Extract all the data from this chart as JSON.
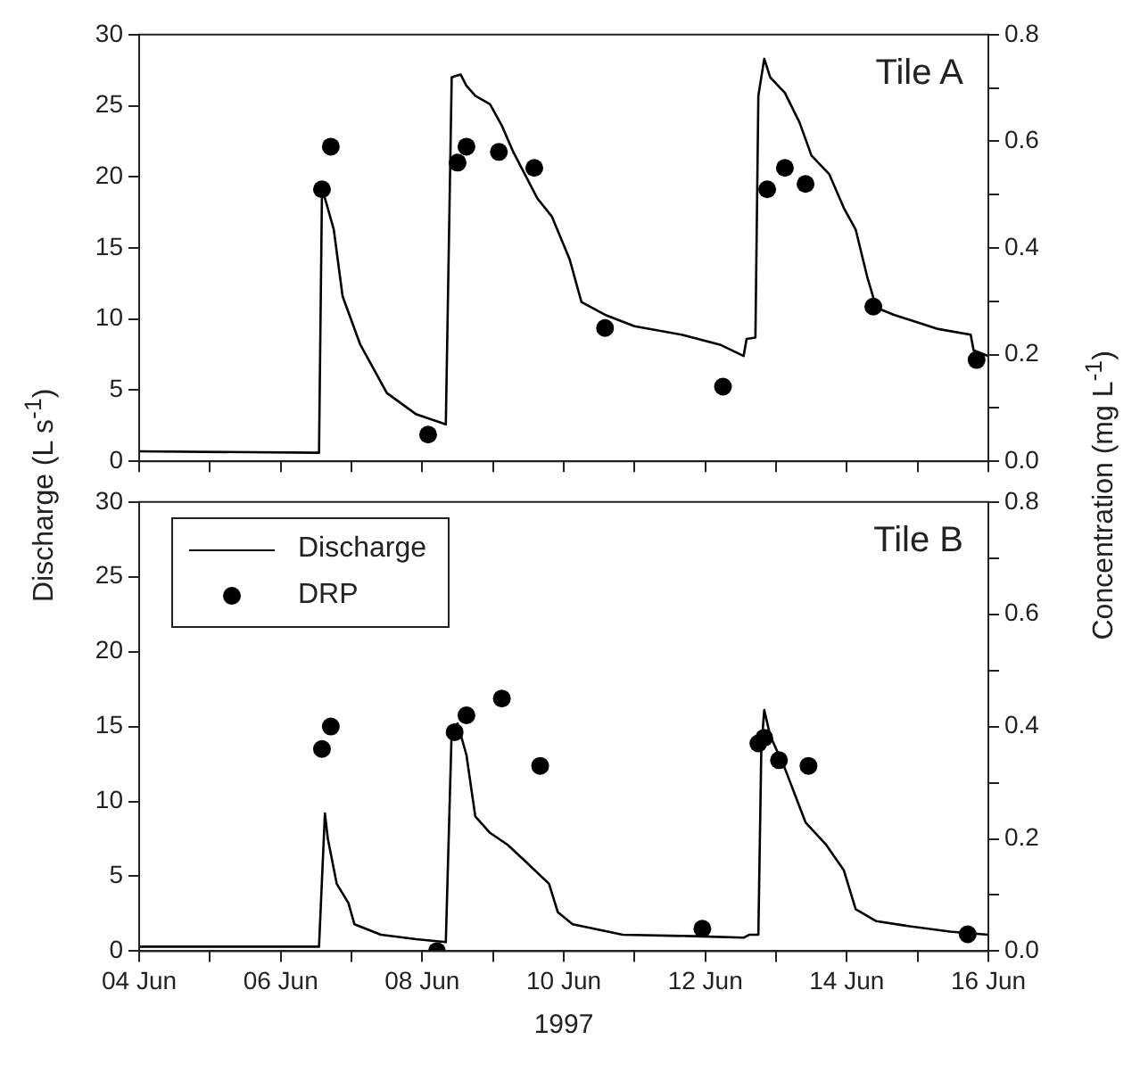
{
  "chart_data": [
    {
      "type": "line",
      "annotations": [
        "Tile A"
      ],
      "ylabel": "Discharge (L s$^{-1}$)",
      "y2label": "Concentration (mg L$^{-1}$)",
      "tick_labels": "y",
      "grid": false,
      "legend": false,
      "xlim": [
        "1997-06-04",
        "1997-06-16"
      ],
      "xticks": [
        {
          "value": "1997-06-04",
          "label": null
        },
        {
          "value": "1997-06-05",
          "label": null
        },
        {
          "value": "1997-06-06",
          "label": null
        },
        {
          "value": "1997-06-07",
          "label": null
        },
        {
          "value": "1997-06-08",
          "label": null
        },
        {
          "value": "1997-06-09",
          "label": null
        },
        {
          "value": "1997-06-10",
          "label": null
        },
        {
          "value": "1997-06-11",
          "label": null
        },
        {
          "value": "1997-06-12",
          "label": null
        },
        {
          "value": "1997-06-13",
          "label": null
        },
        {
          "value": "1997-06-14",
          "label": null
        },
        {
          "value": "1997-06-15",
          "label": null
        },
        {
          "value": "1997-06-16",
          "label": null
        }
      ],
      "ylim": [
        0,
        30
      ],
      "yticks": [
        0,
        5,
        10,
        15,
        20,
        25,
        30
      ],
      "y2lim": [
        0,
        0.8
      ],
      "y2ticks": [
        {
          "value": 0,
          "label": "0.0"
        },
        {
          "value": 0.1,
          "label": null
        },
        {
          "value": 0.2,
          "label": "0.2"
        },
        {
          "value": 0.3,
          "label": null
        },
        {
          "value": 0.4,
          "label": "0.4"
        },
        {
          "value": 0.5,
          "label": null
        },
        {
          "value": 0.6,
          "label": "0.6"
        },
        {
          "value": 0.7,
          "label": null
        },
        {
          "value": 0.8,
          "label": "0.8"
        }
      ],
      "series": [
        {
          "color": "#000000",
          "marker": "none",
          "line_style": "solid",
          "axis": "y",
          "x": [
            "1997-06-04T00:00",
            "1997-06-06T13:00",
            "1997-06-06T14:00",
            "1997-06-06T15:00",
            "1997-06-06T18:00",
            "1997-06-06T21:00",
            "1997-06-07T03:00",
            "1997-06-07T12:00",
            "1997-06-07T22:00",
            "1997-06-08T08:00",
            "1997-06-08T10:00",
            "1997-06-08T13:00",
            "1997-06-08T15:00",
            "1997-06-08T18:00",
            "1997-06-08T23:00",
            "1997-06-09T03:00",
            "1997-06-09T07:00",
            "1997-06-09T15:00",
            "1997-06-09T20:00",
            "1997-06-10T02:00",
            "1997-06-10T06:00",
            "1997-06-10T14:00",
            "1997-06-11T00:00",
            "1997-06-11T16:00",
            "1997-06-12T05:00",
            "1997-06-12T13:00",
            "1997-06-12T14:00",
            "1997-06-12T17:00",
            "1997-06-12T18:00",
            "1997-06-12T20:00",
            "1997-06-12T22:00",
            "1997-06-13T03:00",
            "1997-06-13T08:00",
            "1997-06-13T12:00",
            "1997-06-13T18:00",
            "1997-06-13T23:00",
            "1997-06-14T03:00",
            "1997-06-14T07:00",
            "1997-06-14T10:00",
            "1997-06-14T16:00",
            "1997-06-15T07:00",
            "1997-06-15T18:00",
            "1997-06-15T19:00",
            "1997-06-16T00:00"
          ],
          "values": [
            0.7,
            0.6,
            18.9,
            18.5,
            16.3,
            11.6,
            8.2,
            4.8,
            3.3,
            2.6,
            27.0,
            27.2,
            26.4,
            25.7,
            25.1,
            23.6,
            21.7,
            18.5,
            17.2,
            14.2,
            11.2,
            10.3,
            9.5,
            8.9,
            8.2,
            7.4,
            8.6,
            8.7,
            25.7,
            28.3,
            27.0,
            25.9,
            23.8,
            21.5,
            20.2,
            17.8,
            16.3,
            12.9,
            10.8,
            10.3,
            9.3,
            8.9,
            7.8,
            7.4
          ]
        },
        {
          "type": "scatter",
          "color": "#000000",
          "marker": "circle",
          "axis": "y2",
          "x": [
            "1997-06-06T14:00",
            "1997-06-06T17:00",
            "1997-06-08T02:00",
            "1997-06-08T12:00",
            "1997-06-08T15:00",
            "1997-06-09T02:00",
            "1997-06-09T14:00",
            "1997-06-10T14:00",
            "1997-06-12T06:00",
            "1997-06-12T21:00",
            "1997-06-13T03:00",
            "1997-06-13T10:00",
            "1997-06-14T09:00",
            "1997-06-15T20:00"
          ],
          "values": [
            0.51,
            0.59,
            0.05,
            0.56,
            0.59,
            0.58,
            0.55,
            0.25,
            0.14,
            0.51,
            0.55,
            0.52,
            0.29,
            0.19
          ]
        }
      ]
    },
    {
      "type": "line",
      "annotations": [
        "Tile B"
      ],
      "xlabel": "1997",
      "grid": false,
      "legend": "top left",
      "xlim": [
        "1997-06-04",
        "1997-06-16"
      ],
      "xticks": [
        {
          "value": "1997-06-04",
          "label": "04 Jun"
        },
        {
          "value": "1997-06-05",
          "label": null
        },
        {
          "value": "1997-06-06",
          "label": "06 Jun"
        },
        {
          "value": "1997-06-07",
          "label": null
        },
        {
          "value": "1997-06-08",
          "label": "08 Jun"
        },
        {
          "value": "1997-06-09",
          "label": null
        },
        {
          "value": "1997-06-10",
          "label": "10 Jun"
        },
        {
          "value": "1997-06-11",
          "label": null
        },
        {
          "value": "1997-06-12",
          "label": "12 Jun"
        },
        {
          "value": "1997-06-13",
          "label": null
        },
        {
          "value": "1997-06-14",
          "label": "14 Jun"
        },
        {
          "value": "1997-06-15",
          "label": null
        },
        {
          "value": "1997-06-16",
          "label": "16 Jun"
        }
      ],
      "ylim": [
        0,
        30
      ],
      "yticks": [
        0,
        5,
        10,
        15,
        20,
        25,
        30
      ],
      "y2lim": [
        0,
        0.8
      ],
      "y2ticks": [
        {
          "value": 0,
          "label": "0.0"
        },
        {
          "value": 0.1,
          "label": null
        },
        {
          "value": 0.2,
          "label": "0.2"
        },
        {
          "value": 0.3,
          "label": null
        },
        {
          "value": 0.4,
          "label": "0.4"
        },
        {
          "value": 0.5,
          "label": null
        },
        {
          "value": 0.6,
          "label": "0.6"
        },
        {
          "value": 0.7,
          "label": null
        },
        {
          "value": 0.8,
          "label": "0.8"
        }
      ],
      "series": [
        {
          "name": "Discharge",
          "color": "#000000",
          "marker": "none",
          "line_style": "solid",
          "axis": "y",
          "x": [
            "1997-06-04T00:00",
            "1997-06-06T13:00",
            "1997-06-06T15:00",
            "1997-06-06T16:00",
            "1997-06-06T19:00",
            "1997-06-06T23:00",
            "1997-06-07T01:00",
            "1997-06-07T10:00",
            "1997-06-07T22:00",
            "1997-06-08T08:00",
            "1997-06-08T10:00",
            "1997-06-08T12:00",
            "1997-06-08T15:00",
            "1997-06-08T18:00",
            "1997-06-08T23:00",
            "1997-06-09T05:00",
            "1997-06-09T11:00",
            "1997-06-09T19:00",
            "1997-06-09T22:00",
            "1997-06-10T03:00",
            "1997-06-10T20:00",
            "1997-06-11T20:00",
            "1997-06-12T13:00",
            "1997-06-12T15:00",
            "1997-06-12T18:00",
            "1997-06-12T19:00",
            "1997-06-12T20:00",
            "1997-06-12T22:00",
            "1997-06-13T03:00",
            "1997-06-13T10:00",
            "1997-06-13T17:00",
            "1997-06-13T23:00",
            "1997-06-14T03:00",
            "1997-06-14T10:00",
            "1997-06-14T20:00",
            "1997-06-15T11:00",
            "1997-06-16T00:00"
          ],
          "values": [
            0.3,
            0.3,
            9.2,
            7.5,
            4.5,
            3.2,
            1.8,
            1.1,
            0.8,
            0.6,
            14.8,
            15.2,
            13.1,
            9.0,
            7.9,
            7.1,
            6.0,
            4.5,
            2.6,
            1.8,
            1.1,
            1.0,
            0.9,
            1.1,
            1.1,
            13.5,
            16.1,
            14.4,
            12.2,
            8.6,
            7.1,
            5.4,
            2.8,
            2.0,
            1.7,
            1.3,
            1.1
          ]
        },
        {
          "type": "scatter",
          "name": "DRP",
          "color": "#000000",
          "marker": "circle",
          "axis": "y2",
          "x": [
            "1997-06-06T14:00",
            "1997-06-06T17:00",
            "1997-06-08T05:00",
            "1997-06-08T11:00",
            "1997-06-08T15:00",
            "1997-06-09T03:00",
            "1997-06-09T16:00",
            "1997-06-11T23:00",
            "1997-06-12T18:00",
            "1997-06-12T20:00",
            "1997-06-13T01:00",
            "1997-06-13T11:00",
            "1997-06-15T17:00"
          ],
          "values": [
            0.36,
            0.4,
            0.0,
            0.39,
            0.42,
            0.45,
            0.33,
            0.04,
            0.37,
            0.38,
            0.34,
            0.33,
            0.03
          ]
        }
      ]
    }
  ]
}
